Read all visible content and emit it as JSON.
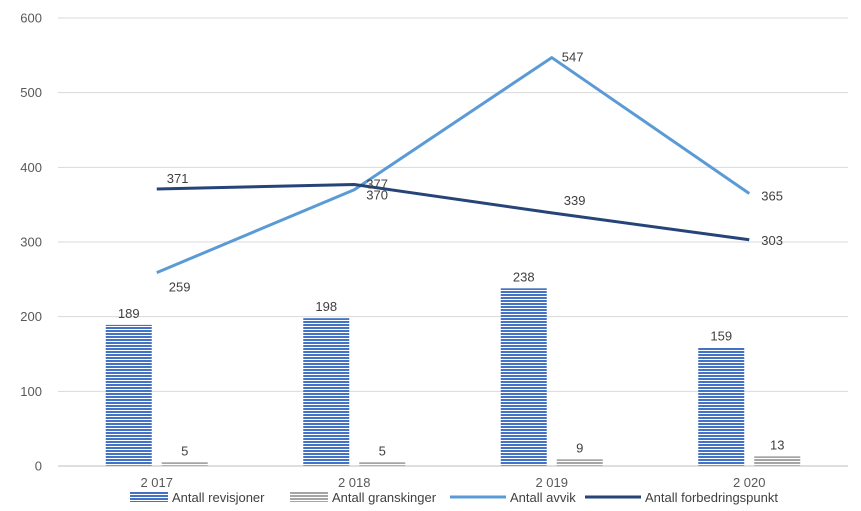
{
  "chart_data": {
    "type": "bar",
    "categories": [
      "2 017",
      "2 018",
      "2 019",
      "2 020"
    ],
    "ylim": [
      0,
      600
    ],
    "yticks": [
      0,
      100,
      200,
      300,
      400,
      500,
      600
    ],
    "grid": true,
    "legend_position": "bottom",
    "series": [
      {
        "name": "Antall revisjoner",
        "kind": "bar",
        "color": "#4472c4",
        "pattern": "horizontal-stripes",
        "values": [
          189,
          198,
          238,
          159
        ]
      },
      {
        "name": "Antall granskinger",
        "kind": "bar",
        "color": "#a5a5a5",
        "pattern": "horizontal-stripes",
        "values": [
          5,
          5,
          9,
          13
        ]
      },
      {
        "name": "Antall avvik",
        "kind": "line",
        "color": "#5b9bd5",
        "values": [
          259,
          370,
          547,
          365
        ]
      },
      {
        "name": "Antall forbedringspunkt",
        "kind": "line",
        "color": "#264478",
        "values": [
          371,
          377,
          339,
          303
        ]
      }
    ]
  }
}
